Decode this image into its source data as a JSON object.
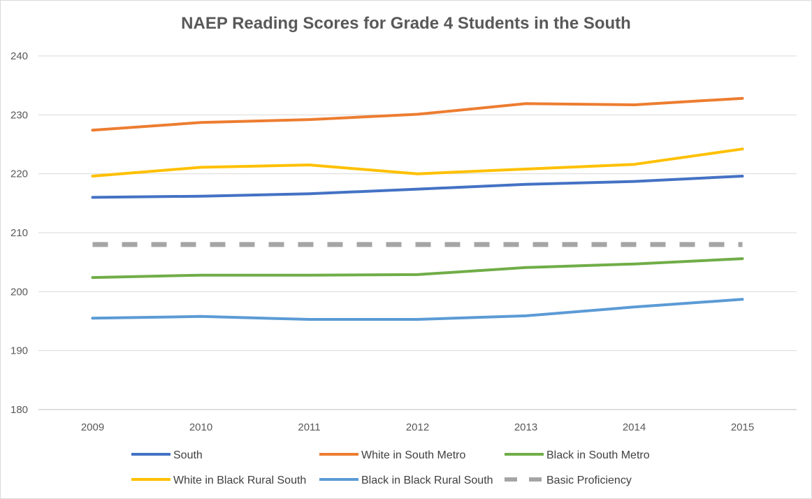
{
  "chart_data": {
    "type": "line",
    "title": "NAEP Reading Scores for Grade 4 Students in the South",
    "xlabel": "",
    "ylabel": "",
    "categories": [
      "2009",
      "2010",
      "2011",
      "2012",
      "2013",
      "2014",
      "2015"
    ],
    "ylim": [
      180,
      240
    ],
    "yticks": [
      180,
      190,
      200,
      210,
      220,
      230,
      240
    ],
    "grid": "horizontal",
    "legend_position": "bottom",
    "series": [
      {
        "name": "South",
        "color": "#4472C4",
        "style": "solid",
        "values": [
          216,
          216.2,
          216.6,
          217.4,
          218.2,
          218.7,
          219.6
        ]
      },
      {
        "name": "White in South Metro",
        "color": "#ED7D31",
        "style": "solid",
        "values": [
          227.4,
          228.7,
          229.2,
          230.1,
          231.9,
          231.7,
          232.8
        ]
      },
      {
        "name": "Black in South Metro",
        "color": "#70AD47",
        "style": "solid",
        "values": [
          202.4,
          202.8,
          202.8,
          202.9,
          204.1,
          204.7,
          205.6
        ]
      },
      {
        "name": "White in Black Rural South",
        "color": "#FFC000",
        "style": "solid",
        "values": [
          219.6,
          221.1,
          221.5,
          220,
          220.8,
          221.6,
          224.2
        ]
      },
      {
        "name": "Black in Black Rural South",
        "color": "#5B9BD5",
        "style": "solid",
        "values": [
          195.5,
          195.8,
          195.3,
          195.3,
          195.9,
          197.4,
          198.7
        ]
      },
      {
        "name": "Basic Proficiency",
        "color": "#A5A5A5",
        "style": "dashed",
        "values": [
          208,
          208,
          208,
          208,
          208,
          208,
          208
        ]
      }
    ]
  }
}
